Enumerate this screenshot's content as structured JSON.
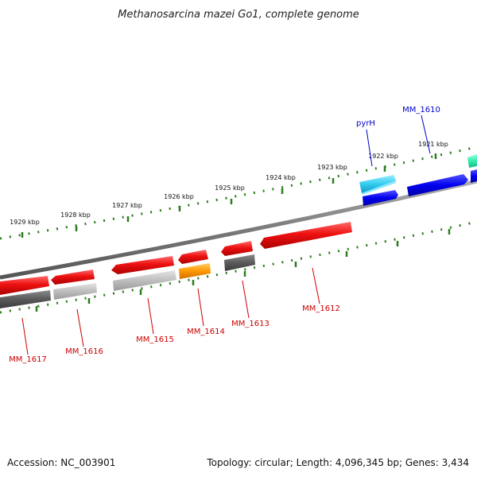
{
  "title": "Methanosarcina mazei Go1, complete genome",
  "footer": {
    "accession": "Accession: NC_003901",
    "summary": "Topology: circular; Length: 4,096,345 bp; Genes: 3,434"
  },
  "kbp_labels": [
    "1929 kbp",
    "1928 kbp",
    "1927 kbp",
    "1926 kbp",
    "1925 kbp",
    "1924 kbp",
    "1923 kbp",
    "1922 kbp",
    "1921 kbp"
  ],
  "genes": [
    {
      "name": "MM_1617",
      "color": "#cc0000"
    },
    {
      "name": "MM_1616",
      "color": "#cc0000"
    },
    {
      "name": "MM_1615",
      "color": "#cc0000"
    },
    {
      "name": "MM_1614",
      "color": "#cc0000"
    },
    {
      "name": "MM_1613",
      "color": "#cc0000"
    },
    {
      "name": "MM_1612",
      "color": "#cc0000"
    },
    {
      "name": "pyrH",
      "color": "#0000cc"
    },
    {
      "name": "MM_1610",
      "color": "#0000cc"
    }
  ],
  "colors": {
    "backbone": "#808080",
    "ruler": "#2e7d1e",
    "forward_cds": "#e01010",
    "cds_shadow_gray": "#b8b8b8",
    "cds_shadow_dark": "#5a5a5a",
    "orange": "#ff9900",
    "cyan": "#33ccee",
    "blue": "#0000ee",
    "teal": "#33eeaa"
  }
}
